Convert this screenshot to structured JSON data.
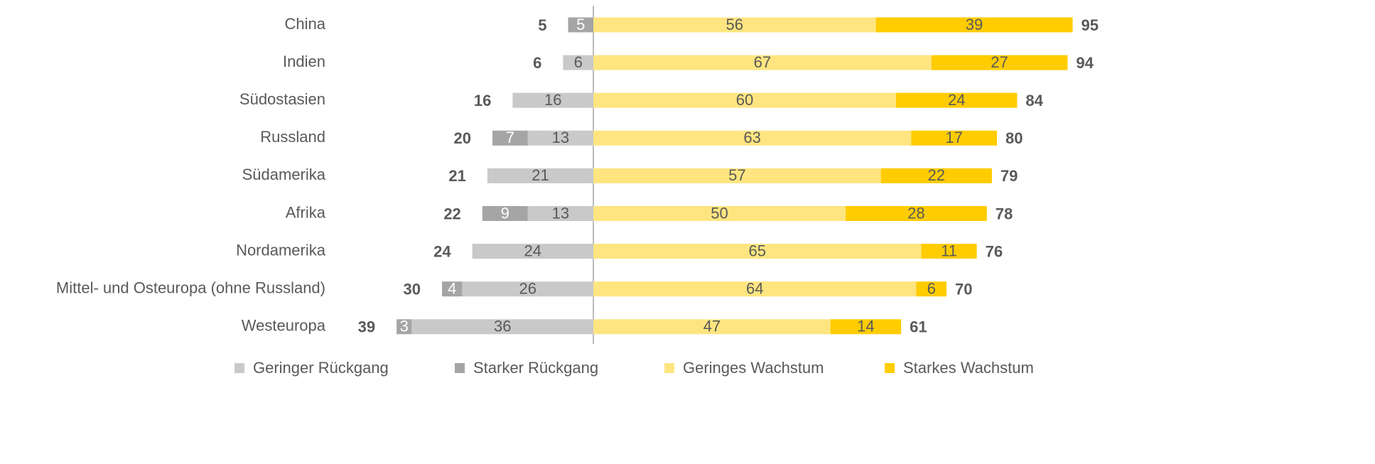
{
  "chart_data": {
    "type": "diverging_bar",
    "categories": [
      "China",
      "Indien",
      "Südostasien",
      "Russland",
      "Südamerika",
      "Afrika",
      "Nordamerika",
      "Mittel- und Osteuropa (ohne Russland)",
      "Westeuropa"
    ],
    "series": [
      {
        "name": "Geringer Rückgang",
        "color": "#c9c9c9",
        "values": [
          0,
          6,
          16,
          13,
          21,
          13,
          24,
          26,
          36
        ]
      },
      {
        "name": "Starker Rückgang",
        "color": "#a5a5a5",
        "values": [
          5,
          0,
          0,
          7,
          0,
          9,
          0,
          4,
          3
        ]
      },
      {
        "name": "Geringes Wachstum",
        "color": "#fee580",
        "values": [
          56,
          67,
          60,
          63,
          57,
          50,
          65,
          64,
          47
        ]
      },
      {
        "name": "Starkes Wachstum",
        "color": "#ffcc00",
        "values": [
          39,
          27,
          24,
          17,
          22,
          28,
          11,
          6,
          14
        ]
      }
    ],
    "decline_totals": [
      5,
      6,
      16,
      20,
      21,
      22,
      24,
      30,
      39
    ],
    "growth_totals": [
      95,
      94,
      84,
      80,
      79,
      78,
      76,
      70,
      61
    ],
    "legend": "bottom"
  }
}
